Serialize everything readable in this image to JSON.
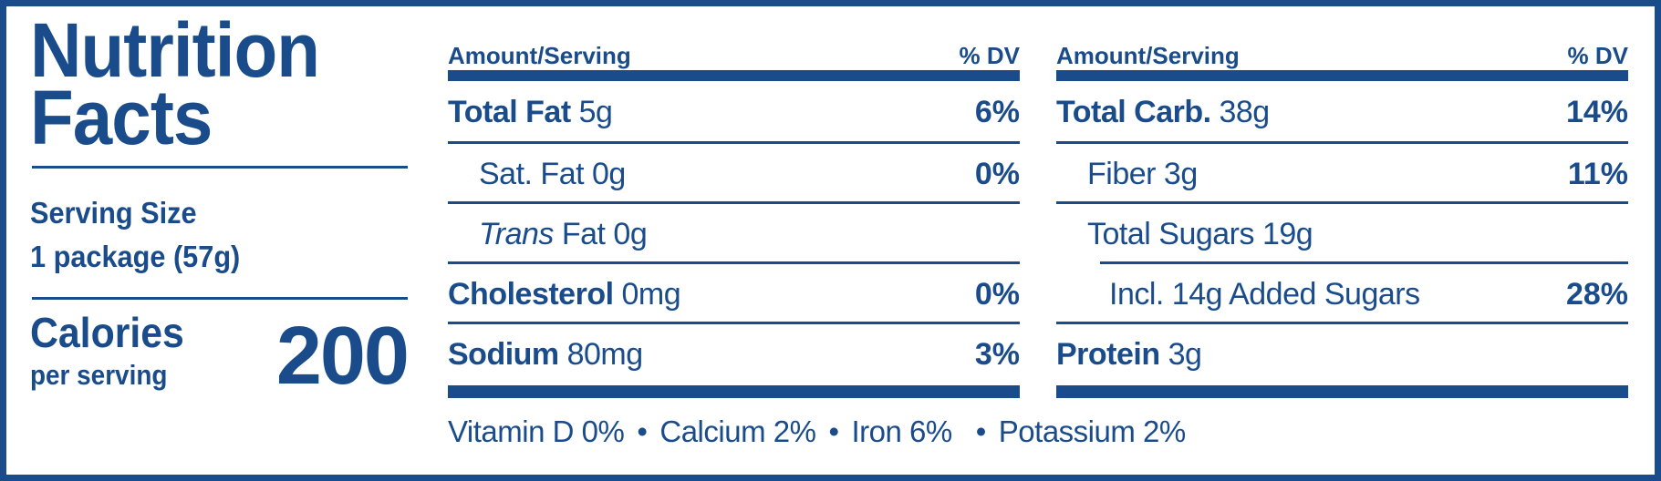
{
  "title": [
    "Nutrition",
    "Facts"
  ],
  "serving": {
    "label": "Serving Size",
    "value": "1 package (57g)"
  },
  "calories": {
    "label": "Calories",
    "sub": "per serving",
    "value": "200"
  },
  "header": {
    "amount": "Amount/Serving",
    "dv": "% DV"
  },
  "left_rows": [
    {
      "bold": "Total Fat",
      "text": " 5g",
      "dv": "6%"
    },
    {
      "bold": "",
      "text": "Sat. Fat 0g",
      "dv": "0%"
    },
    {
      "italic": "Trans",
      "text": " Fat 0g",
      "dv": ""
    },
    {
      "bold": "Cholesterol",
      "text": " 0mg",
      "dv": "0%"
    },
    {
      "bold": "Sodium",
      "text": " 80mg",
      "dv": "3%"
    }
  ],
  "right_rows": [
    {
      "bold": "Total Carb.",
      "text": " 38g",
      "dv": "14%"
    },
    {
      "bold": "",
      "text": "Fiber 3g",
      "dv": "11%"
    },
    {
      "bold": "",
      "text": "Total Sugars 19g",
      "dv": ""
    },
    {
      "bold": "",
      "text": "Incl. 14g Added Sugars",
      "dv": "28%"
    },
    {
      "bold": "Protein",
      "text": " 3g",
      "dv": ""
    }
  ],
  "vitamins": [
    "Vitamin D 0%",
    "Calcium 2%",
    "Iron 6%",
    "Potassium 2%"
  ],
  "separator": "•",
  "colors": {
    "ink": "#1a4c8c",
    "background": "#ffffff"
  }
}
